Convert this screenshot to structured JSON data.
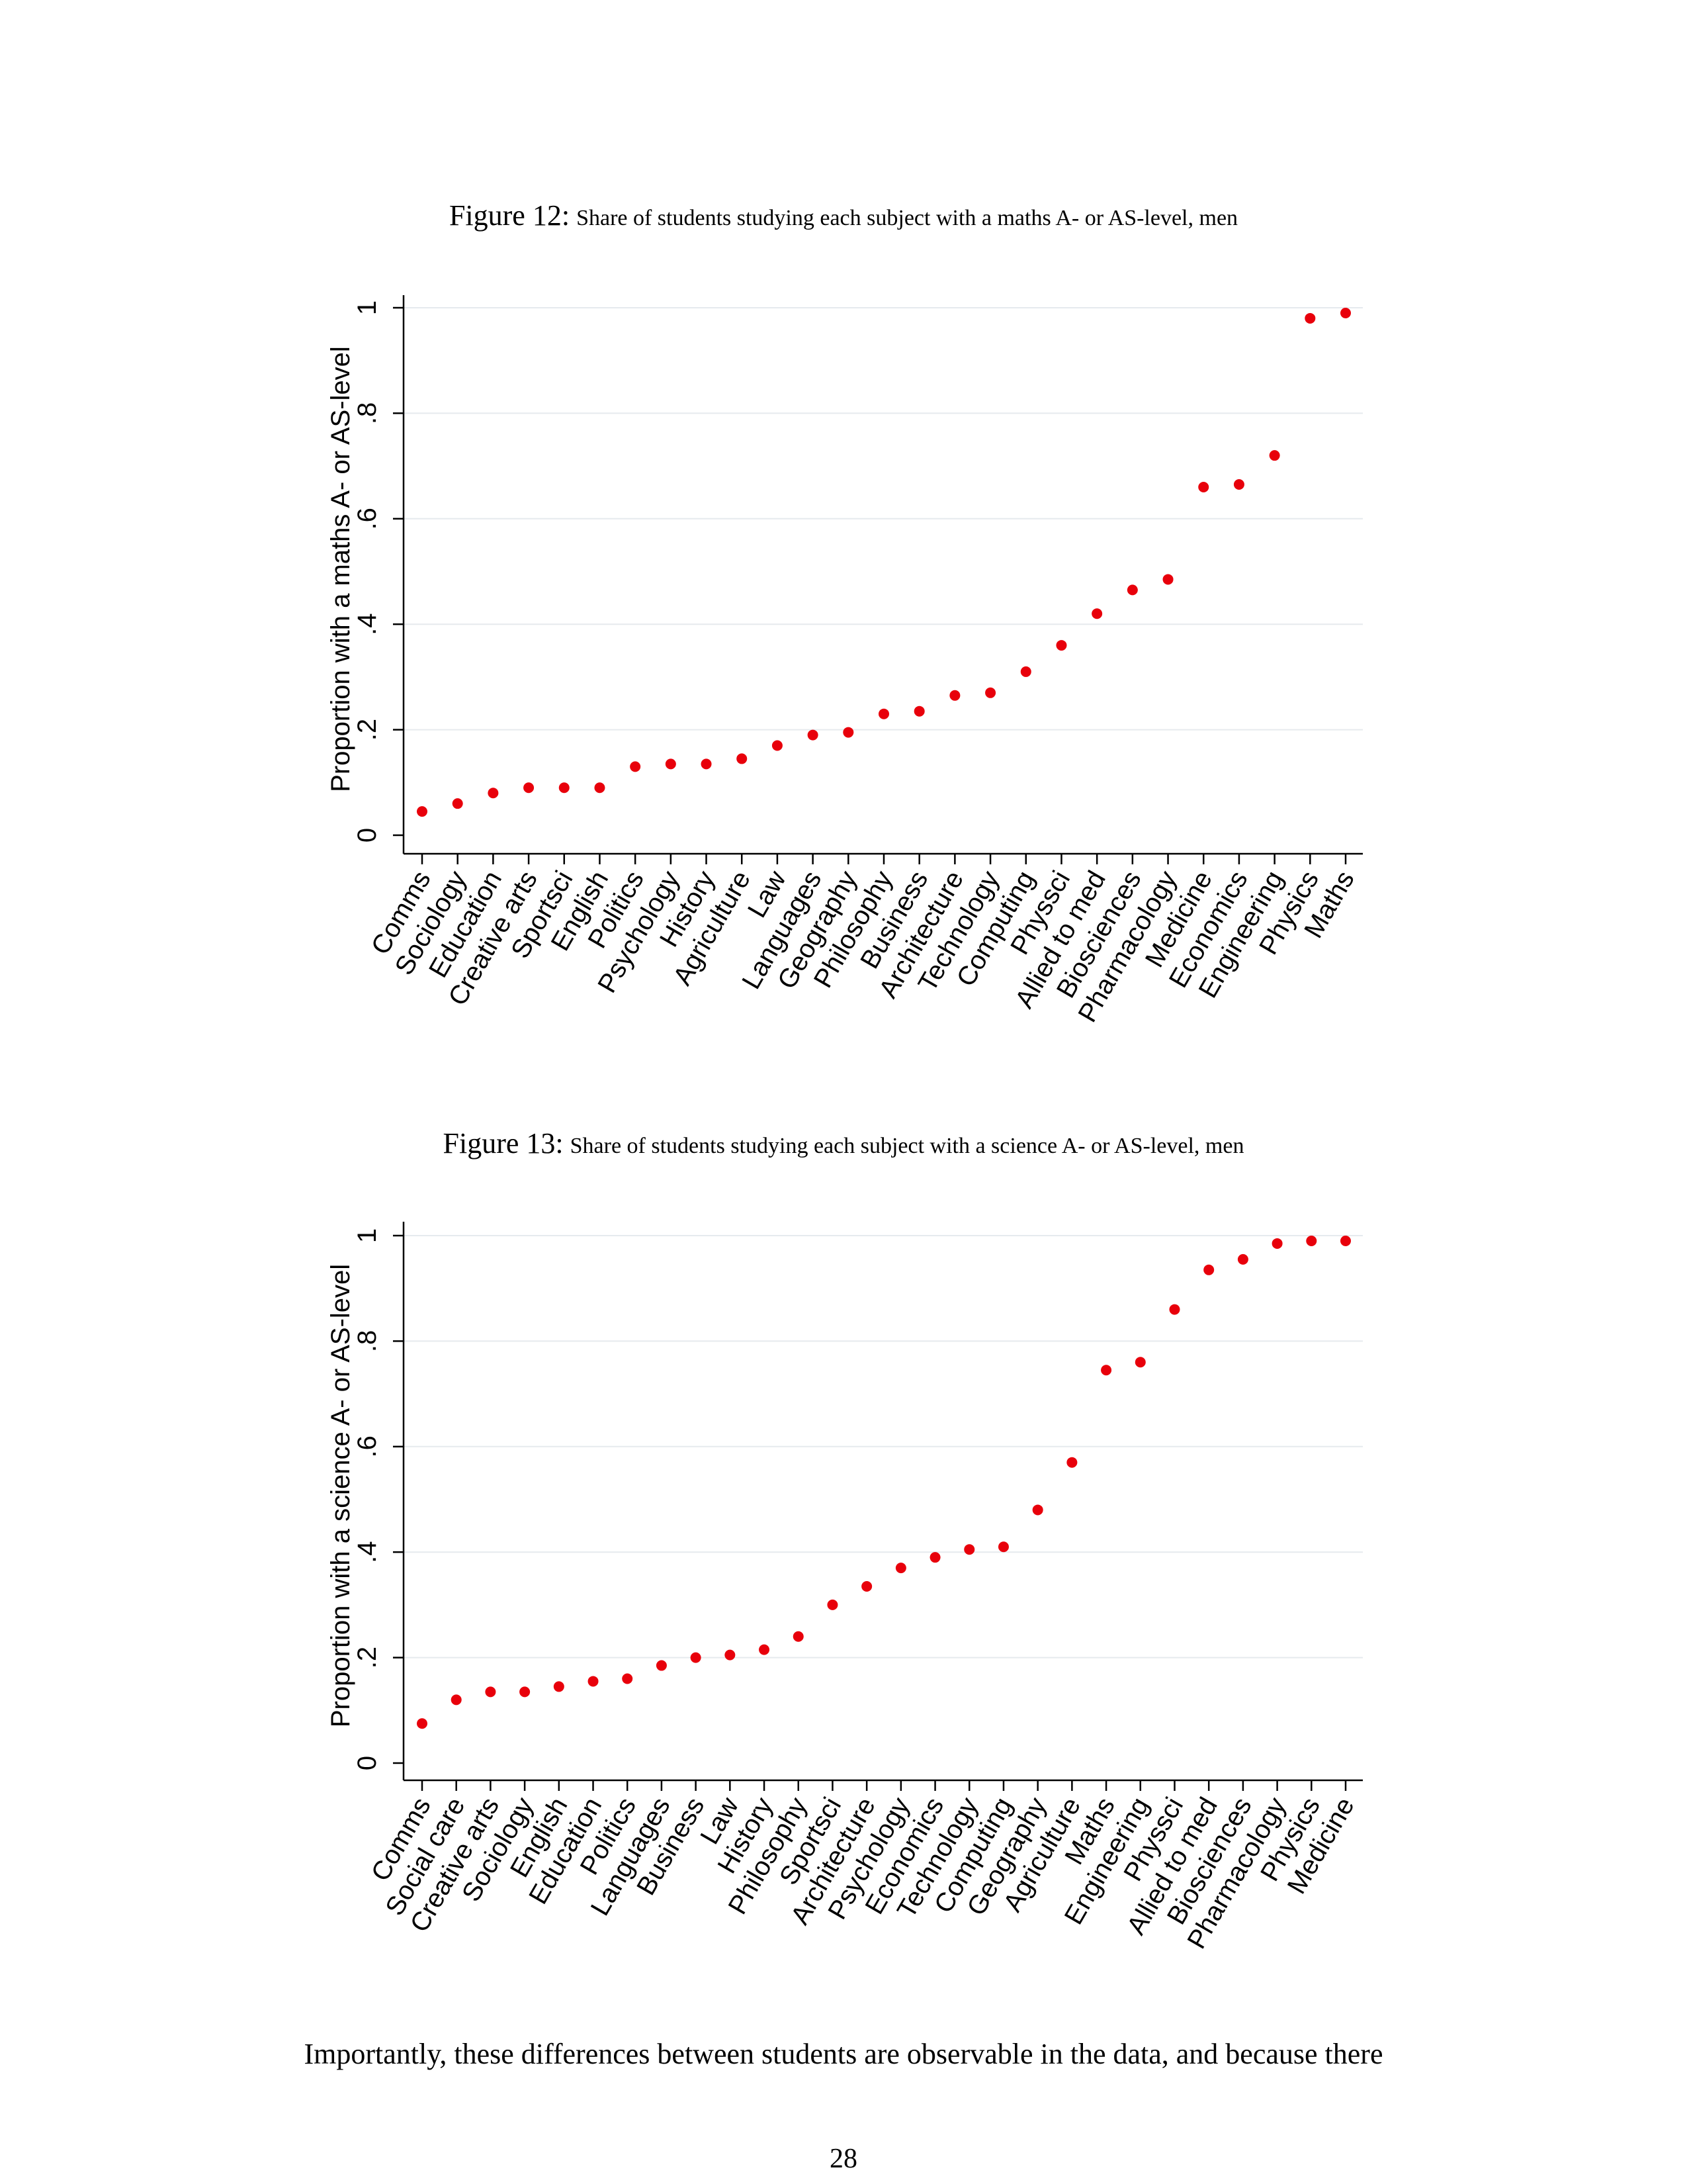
{
  "figures": [
    {
      "label": "Figure 12:",
      "caption": "Share of students studying each subject with a maths A- or AS-level, men",
      "chart_data": {
        "type": "scatter",
        "title": "",
        "xlabel": "",
        "ylabel": "Proportion with a maths A- or AS-level",
        "ylim": [
          0,
          1
        ],
        "yticks": [
          0,
          0.2,
          0.4,
          0.6,
          0.8,
          1
        ],
        "yticklabels": [
          "0",
          ".2",
          ".4",
          ".6",
          ".8",
          "1"
        ],
        "grid": true,
        "marker_color": "#e8000b",
        "categories": [
          "Comms",
          "Sociology",
          "Education",
          "Creative arts",
          "Sportsci",
          "English",
          "Politics",
          "Psychology",
          "History",
          "Agriculture",
          "Law",
          "Languages",
          "Geography",
          "Philosophy",
          "Business",
          "Architecture",
          "Technology",
          "Computing",
          "Physsci",
          "Allied to med",
          "Biosciences",
          "Pharmacology",
          "Medicine",
          "Economics",
          "Engineering",
          "Physics",
          "Maths"
        ],
        "values": [
          0.045,
          0.06,
          0.08,
          0.09,
          0.09,
          0.09,
          0.13,
          0.135,
          0.135,
          0.145,
          0.17,
          0.19,
          0.195,
          0.23,
          0.235,
          0.265,
          0.27,
          0.31,
          0.36,
          0.42,
          0.465,
          0.485,
          0.66,
          0.665,
          0.72,
          0.98,
          0.99
        ]
      }
    },
    {
      "label": "Figure 13:",
      "caption": "Share of students studying each subject with a science A- or AS-level, men",
      "chart_data": {
        "type": "scatter",
        "title": "",
        "xlabel": "",
        "ylabel": "Proportion with a science A- or AS-level",
        "ylim": [
          0,
          1
        ],
        "yticks": [
          0,
          0.2,
          0.4,
          0.6,
          0.8,
          1
        ],
        "yticklabels": [
          "0",
          ".2",
          ".4",
          ".6",
          ".8",
          "1"
        ],
        "grid": true,
        "marker_color": "#e8000b",
        "categories": [
          "Comms",
          "Social care",
          "Creative arts",
          "Sociology",
          "English",
          "Education",
          "Politics",
          "Languages",
          "Business",
          "Law",
          "History",
          "Philosophy",
          "Sportsci",
          "Architecture",
          "Psychology",
          "Economics",
          "Technology",
          "Computing",
          "Geography",
          "Agriculture",
          "Maths",
          "Engineering",
          "Physsci",
          "Allied to med",
          "Biosciences",
          "Pharmacology",
          "Physics",
          "Medicine"
        ],
        "values": [
          0.075,
          0.12,
          0.135,
          0.135,
          0.145,
          0.155,
          0.16,
          0.185,
          0.2,
          0.205,
          0.215,
          0.24,
          0.3,
          0.335,
          0.37,
          0.39,
          0.405,
          0.41,
          0.48,
          0.57,
          0.745,
          0.76,
          0.86,
          0.935,
          0.955,
          0.985,
          0.99,
          0.99
        ]
      }
    }
  ],
  "body_text": "Importantly, these differences between students are observable in the data, and because there",
  "page_number": "28"
}
